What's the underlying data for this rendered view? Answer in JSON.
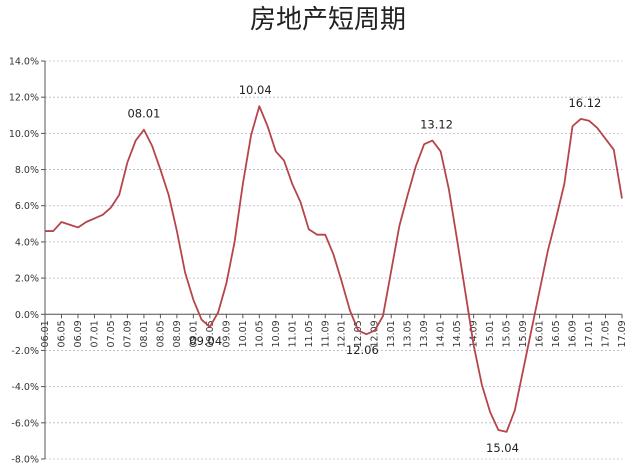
{
  "chart_data": {
    "type": "line",
    "title": "房地产短周期",
    "xlabel": "",
    "ylabel": "",
    "ylim": [
      -8.0,
      14.0
    ],
    "grid": true,
    "legend": "none",
    "y_ticks": [
      "14.0%",
      "12.0%",
      "10.0%",
      "8.0%",
      "6.0%",
      "4.0%",
      "2.0%",
      "0.0%",
      "-2.0%",
      "-4.0%",
      "-6.0%",
      "-8.0%"
    ],
    "x_ticks": [
      "06.01",
      "06.05",
      "06.09",
      "07.01",
      "07.05",
      "07.09",
      "08.01",
      "08.05",
      "08.09",
      "09.01",
      "09.05",
      "09.09",
      "10.01",
      "10.05",
      "10.09",
      "11.01",
      "11.05",
      "11.09",
      "12.01",
      "12.05",
      "12.09",
      "13.01",
      "13.05",
      "13.09",
      "14.01",
      "14.05",
      "14.09",
      "15.01",
      "15.05",
      "15.09",
      "16.01",
      "16.05",
      "16.09",
      "17.01",
      "17.05",
      "17.09"
    ],
    "series": [
      {
        "color": "#b5454b",
        "x": [
          "06.01",
          "06.03",
          "06.05",
          "06.07",
          "06.09",
          "06.11",
          "07.01",
          "07.03",
          "07.05",
          "07.07",
          "07.09",
          "07.11",
          "08.01",
          "08.03",
          "08.05",
          "08.07",
          "08.09",
          "08.11",
          "09.01",
          "09.03",
          "09.05",
          "09.07",
          "09.09",
          "09.11",
          "10.01",
          "10.03",
          "10.05",
          "10.07",
          "10.09",
          "10.11",
          "11.01",
          "11.03",
          "11.05",
          "11.07",
          "11.09",
          "11.11",
          "12.01",
          "12.03",
          "12.05",
          "12.07",
          "12.09",
          "12.11",
          "13.01",
          "13.03",
          "13.05",
          "13.07",
          "13.09",
          "13.11",
          "14.01",
          "14.03",
          "14.05",
          "14.07",
          "14.09",
          "14.11",
          "15.01",
          "15.03",
          "15.05",
          "15.07",
          "15.09",
          "15.11",
          "16.01",
          "16.03",
          "16.05",
          "16.07",
          "16.09",
          "16.11",
          "17.01",
          "17.03",
          "17.05",
          "17.07",
          "17.09"
        ],
        "values": [
          4.6,
          4.6,
          5.1,
          4.95,
          4.8,
          5.1,
          5.3,
          5.5,
          5.9,
          6.6,
          8.4,
          9.6,
          10.2,
          9.3,
          8.0,
          6.6,
          4.6,
          2.3,
          0.8,
          -0.3,
          -0.7,
          0.1,
          1.7,
          4.0,
          7.2,
          9.9,
          11.5,
          10.4,
          9.0,
          8.5,
          7.2,
          6.2,
          4.7,
          4.4,
          4.4,
          3.3,
          1.8,
          0.2,
          -0.9,
          -1.1,
          -0.9,
          -0.1,
          2.4,
          4.9,
          6.6,
          8.2,
          9.4,
          9.6,
          9.0,
          6.9,
          4.1,
          1.2,
          -1.7,
          -3.9,
          -5.4,
          -6.4,
          -6.5,
          -5.3,
          -3.1,
          -0.9,
          1.3,
          3.5,
          5.3,
          7.2,
          10.4,
          10.8,
          10.7,
          10.3,
          9.7,
          9.1,
          6.4
        ]
      }
    ],
    "annotations": [
      {
        "label": "08.01",
        "x": "08.01",
        "y": 10.2,
        "position": "above"
      },
      {
        "label": "09.04",
        "x": "09.04",
        "y": -0.6,
        "position": "below"
      },
      {
        "label": "10.04",
        "x": "10.04",
        "y": 11.5,
        "position": "above"
      },
      {
        "label": "12.06",
        "x": "12.06",
        "y": -1.1,
        "position": "below"
      },
      {
        "label": "13.12",
        "x": "13.12",
        "y": 9.6,
        "position": "above"
      },
      {
        "label": "15.04",
        "x": "15.04",
        "y": -6.5,
        "position": "below"
      },
      {
        "label": "16.12",
        "x": "16.12",
        "y": 10.8,
        "position": "above"
      }
    ]
  }
}
